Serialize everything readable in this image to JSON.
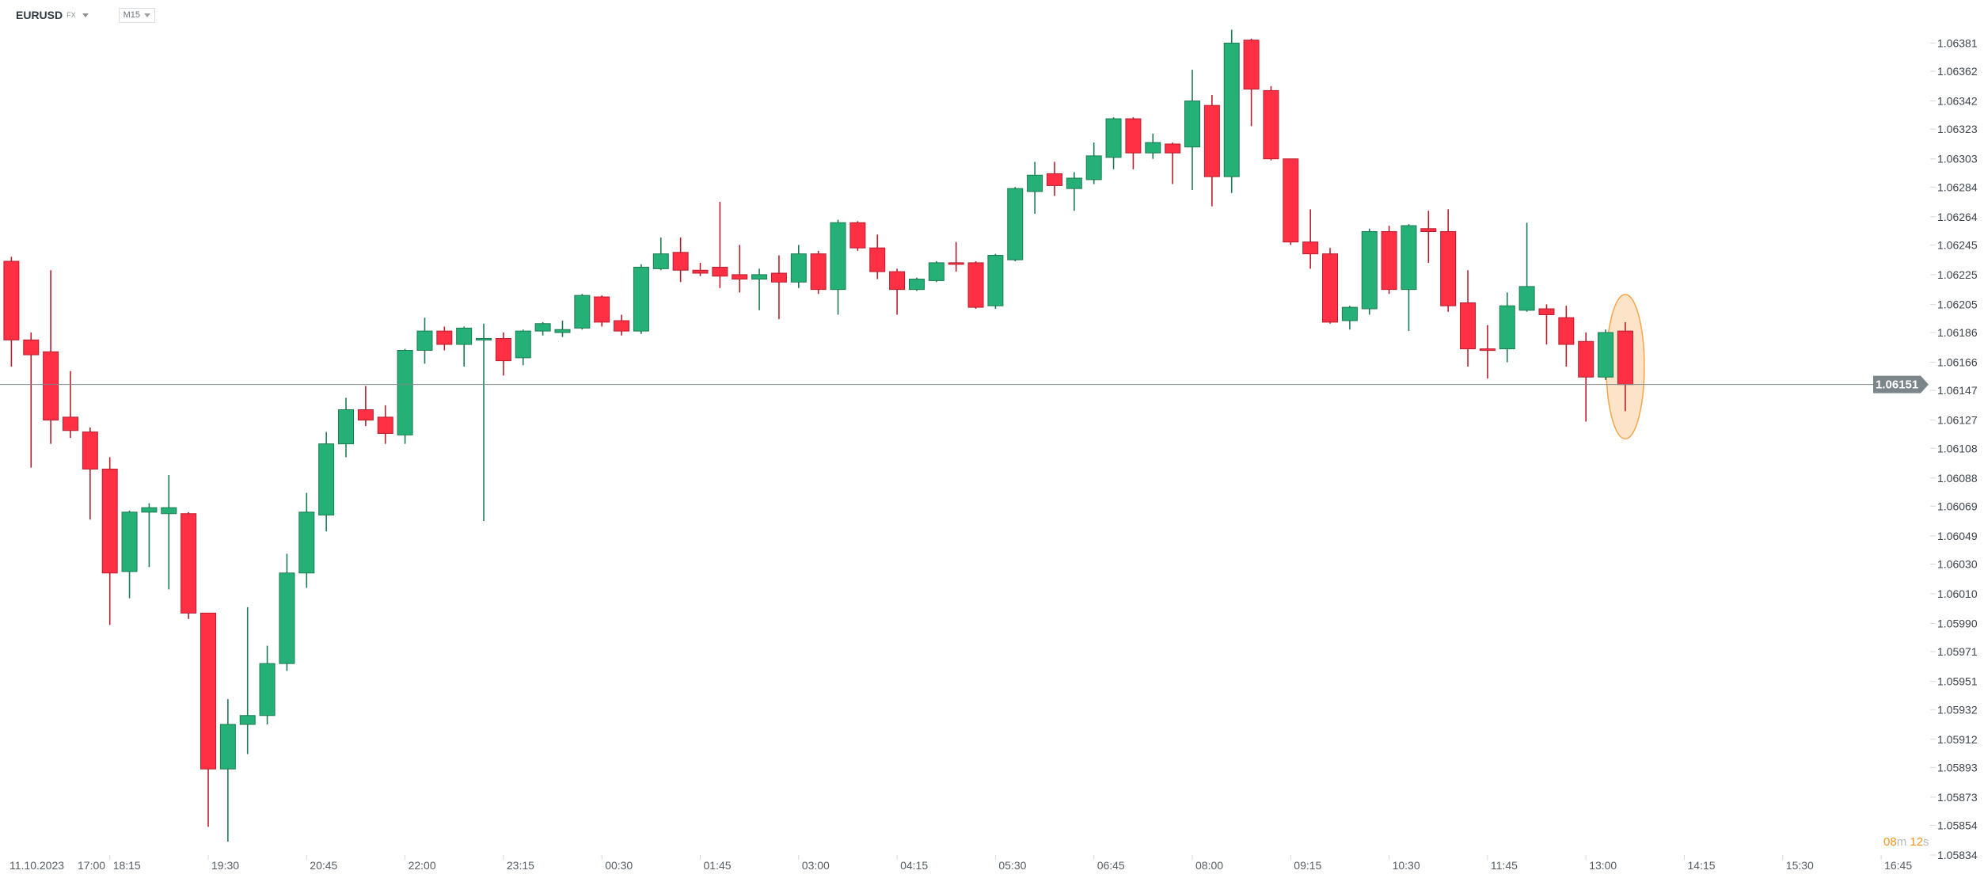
{
  "header": {
    "symbol": "EURUSD",
    "market": "FX",
    "timeframe": "M15"
  },
  "countdown": {
    "minutes": "08",
    "minutes_unit": "m",
    "seconds": "12",
    "seconds_unit": "s"
  },
  "colors": {
    "up": "#25b077",
    "up_border": "#1b7c52",
    "down": "#ff2f44",
    "down_border": "#b81f2e",
    "price_line": "#7c868a",
    "highlight": "#f7a44a"
  },
  "chart_data": {
    "type": "candlestick",
    "instrument": "EURUSD",
    "interval": "M15",
    "current_price": 1.06151,
    "current_price_label": "1.06151",
    "ylim": [
      1.05834,
      1.06381
    ],
    "grid": false,
    "y_ticks": [
      "1.06381",
      "1.06362",
      "1.06342",
      "1.06323",
      "1.06303",
      "1.06284",
      "1.06264",
      "1.06245",
      "1.06225",
      "1.06205",
      "1.06186",
      "1.06166",
      "1.06147",
      "1.06127",
      "1.06108",
      "1.06088",
      "1.06069",
      "1.06049",
      "1.06030",
      "1.06010",
      "1.05990",
      "1.05971",
      "1.05951",
      "1.05932",
      "1.05912",
      "1.05893",
      "1.05873",
      "1.05854",
      "1.05834"
    ],
    "x_ticks": [
      "11.10.2023",
      "17:00",
      "18:15",
      "19:30",
      "20:45",
      "22:00",
      "23:15",
      "00:30",
      "01:45",
      "03:00",
      "04:15",
      "05:30",
      "06:45",
      "08:00",
      "09:15",
      "10:30",
      "11:45",
      "13:00",
      "14:15",
      "15:30",
      "16:45"
    ],
    "highlighted_candle": "13:30",
    "columns": [
      "time",
      "open",
      "high",
      "low",
      "close"
    ],
    "candles": [
      [
        "17:00",
        1.06234,
        1.06237,
        1.06163,
        1.06181
      ],
      [
        "17:15",
        1.06181,
        1.06186,
        1.06095,
        1.06171
      ],
      [
        "17:30",
        1.06173,
        1.06228,
        1.06111,
        1.06127
      ],
      [
        "17:45",
        1.06129,
        1.0616,
        1.06115,
        1.0612
      ],
      [
        "18:00",
        1.06119,
        1.06122,
        1.0606,
        1.06094
      ],
      [
        "18:15",
        1.06094,
        1.06102,
        1.05989,
        1.06024
      ],
      [
        "18:30",
        1.06025,
        1.06066,
        1.06007,
        1.06065
      ],
      [
        "18:45",
        1.06065,
        1.06071,
        1.06028,
        1.06068
      ],
      [
        "19:00",
        1.06064,
        1.0609,
        1.06013,
        1.06068
      ],
      [
        "19:15",
        1.06064,
        1.06065,
        1.05993,
        1.05997
      ],
      [
        "19:30",
        1.05997,
        1.05997,
        1.05853,
        1.05892
      ],
      [
        "19:45",
        1.05892,
        1.05939,
        1.05843,
        1.05922
      ],
      [
        "20:00",
        1.05922,
        1.06001,
        1.05902,
        1.05928
      ],
      [
        "20:15",
        1.05928,
        1.05975,
        1.05922,
        1.05963
      ],
      [
        "20:30",
        1.05963,
        1.06037,
        1.05958,
        1.06024
      ],
      [
        "20:45",
        1.06024,
        1.06078,
        1.06014,
        1.06065
      ],
      [
        "21:00",
        1.06063,
        1.06119,
        1.06052,
        1.06111
      ],
      [
        "21:15",
        1.06111,
        1.06142,
        1.06102,
        1.06134
      ],
      [
        "21:30",
        1.06134,
        1.0615,
        1.06123,
        1.06127
      ],
      [
        "21:45",
        1.06129,
        1.06137,
        1.06111,
        1.06118
      ],
      [
        "22:00",
        1.06117,
        1.06175,
        1.06111,
        1.06174
      ],
      [
        "22:15",
        1.06174,
        1.06196,
        1.06165,
        1.06187
      ],
      [
        "22:30",
        1.06187,
        1.0619,
        1.06174,
        1.06178
      ],
      [
        "22:45",
        1.06178,
        1.0619,
        1.06163,
        1.06189
      ],
      [
        "23:00",
        1.06181,
        1.06192,
        1.06059,
        1.06182
      ],
      [
        "23:15",
        1.06182,
        1.06186,
        1.06157,
        1.06167
      ],
      [
        "23:30",
        1.06169,
        1.06188,
        1.06164,
        1.06187
      ],
      [
        "23:45",
        1.06187,
        1.06193,
        1.06184,
        1.06192
      ],
      [
        "00:00",
        1.06186,
        1.06194,
        1.06183,
        1.06188
      ],
      [
        "00:15",
        1.06189,
        1.06212,
        1.06188,
        1.06211
      ],
      [
        "00:30",
        1.0621,
        1.06211,
        1.0619,
        1.06193
      ],
      [
        "00:45",
        1.06194,
        1.06198,
        1.06184,
        1.06187
      ],
      [
        "01:00",
        1.06187,
        1.06232,
        1.06185,
        1.0623
      ],
      [
        "01:15",
        1.06229,
        1.0625,
        1.06228,
        1.06239
      ],
      [
        "01:30",
        1.0624,
        1.0625,
        1.0622,
        1.06228
      ],
      [
        "01:45",
        1.06228,
        1.06233,
        1.06224,
        1.06226
      ],
      [
        "02:00",
        1.0623,
        1.06274,
        1.06216,
        1.06224
      ],
      [
        "02:15",
        1.06225,
        1.06245,
        1.06213,
        1.06222
      ],
      [
        "02:30",
        1.06222,
        1.06229,
        1.06201,
        1.06225
      ],
      [
        "02:45",
        1.06226,
        1.06238,
        1.06195,
        1.0622
      ],
      [
        "03:00",
        1.0622,
        1.06245,
        1.06216,
        1.06239
      ],
      [
        "03:15",
        1.06239,
        1.06241,
        1.06212,
        1.06215
      ],
      [
        "03:30",
        1.06215,
        1.06262,
        1.06198,
        1.0626
      ],
      [
        "03:45",
        1.0626,
        1.06261,
        1.06241,
        1.06243
      ],
      [
        "04:00",
        1.06243,
        1.06252,
        1.06222,
        1.06227
      ],
      [
        "04:15",
        1.06227,
        1.06229,
        1.06198,
        1.06215
      ],
      [
        "04:30",
        1.06215,
        1.06223,
        1.06214,
        1.06222
      ],
      [
        "04:45",
        1.06221,
        1.06234,
        1.0622,
        1.06233
      ],
      [
        "05:00",
        1.06233,
        1.06247,
        1.06227,
        1.06232
      ],
      [
        "05:15",
        1.06233,
        1.06234,
        1.06202,
        1.06203
      ],
      [
        "05:30",
        1.06204,
        1.06239,
        1.06202,
        1.06238
      ],
      [
        "05:45",
        1.06235,
        1.06284,
        1.06234,
        1.06283
      ],
      [
        "06:00",
        1.06281,
        1.06301,
        1.06266,
        1.06292
      ],
      [
        "06:15",
        1.06293,
        1.06301,
        1.06278,
        1.06285
      ],
      [
        "06:30",
        1.06283,
        1.06294,
        1.06268,
        1.0629
      ],
      [
        "06:45",
        1.06289,
        1.06314,
        1.06286,
        1.06305
      ],
      [
        "07:00",
        1.06304,
        1.06331,
        1.06296,
        1.0633
      ],
      [
        "07:15",
        1.0633,
        1.06331,
        1.06296,
        1.06307
      ],
      [
        "07:30",
        1.06307,
        1.0632,
        1.06303,
        1.06314
      ],
      [
        "07:45",
        1.06313,
        1.06314,
        1.06286,
        1.06307
      ],
      [
        "08:00",
        1.06311,
        1.06363,
        1.06282,
        1.06342
      ],
      [
        "08:15",
        1.06339,
        1.06346,
        1.06271,
        1.06291
      ],
      [
        "08:30",
        1.06291,
        1.0639,
        1.0628,
        1.06381
      ],
      [
        "08:45",
        1.06383,
        1.06384,
        1.06325,
        1.0635
      ],
      [
        "09:00",
        1.06349,
        1.06352,
        1.06302,
        1.06303
      ],
      [
        "09:15",
        1.06303,
        1.06303,
        1.06245,
        1.06247
      ],
      [
        "09:30",
        1.06247,
        1.06269,
        1.06229,
        1.06239
      ],
      [
        "09:45",
        1.06239,
        1.06243,
        1.06192,
        1.06193
      ],
      [
        "10:00",
        1.06194,
        1.06204,
        1.06188,
        1.06203
      ],
      [
        "10:15",
        1.06202,
        1.06256,
        1.06198,
        1.06254
      ],
      [
        "10:30",
        1.06254,
        1.06258,
        1.06212,
        1.06215
      ],
      [
        "10:45",
        1.06215,
        1.06259,
        1.06187,
        1.06258
      ],
      [
        "11:00",
        1.06256,
        1.06268,
        1.06233,
        1.06254
      ],
      [
        "11:15",
        1.06254,
        1.06269,
        1.062,
        1.06204
      ],
      [
        "11:30",
        1.06206,
        1.06228,
        1.06163,
        1.06175
      ],
      [
        "11:45",
        1.06175,
        1.06191,
        1.06155,
        1.06174
      ],
      [
        "12:00",
        1.06175,
        1.06213,
        1.06166,
        1.06204
      ],
      [
        "12:15",
        1.06201,
        1.0626,
        1.062,
        1.06217
      ],
      [
        "12:30",
        1.06202,
        1.06205,
        1.06178,
        1.06198
      ],
      [
        "12:45",
        1.06196,
        1.06204,
        1.06163,
        1.06178
      ],
      [
        "13:00",
        1.0618,
        1.06186,
        1.06126,
        1.06156
      ],
      [
        "13:15",
        1.06156,
        1.06188,
        1.06154,
        1.06186
      ],
      [
        "13:30",
        1.06187,
        1.06193,
        1.06133,
        1.06151
      ]
    ]
  }
}
